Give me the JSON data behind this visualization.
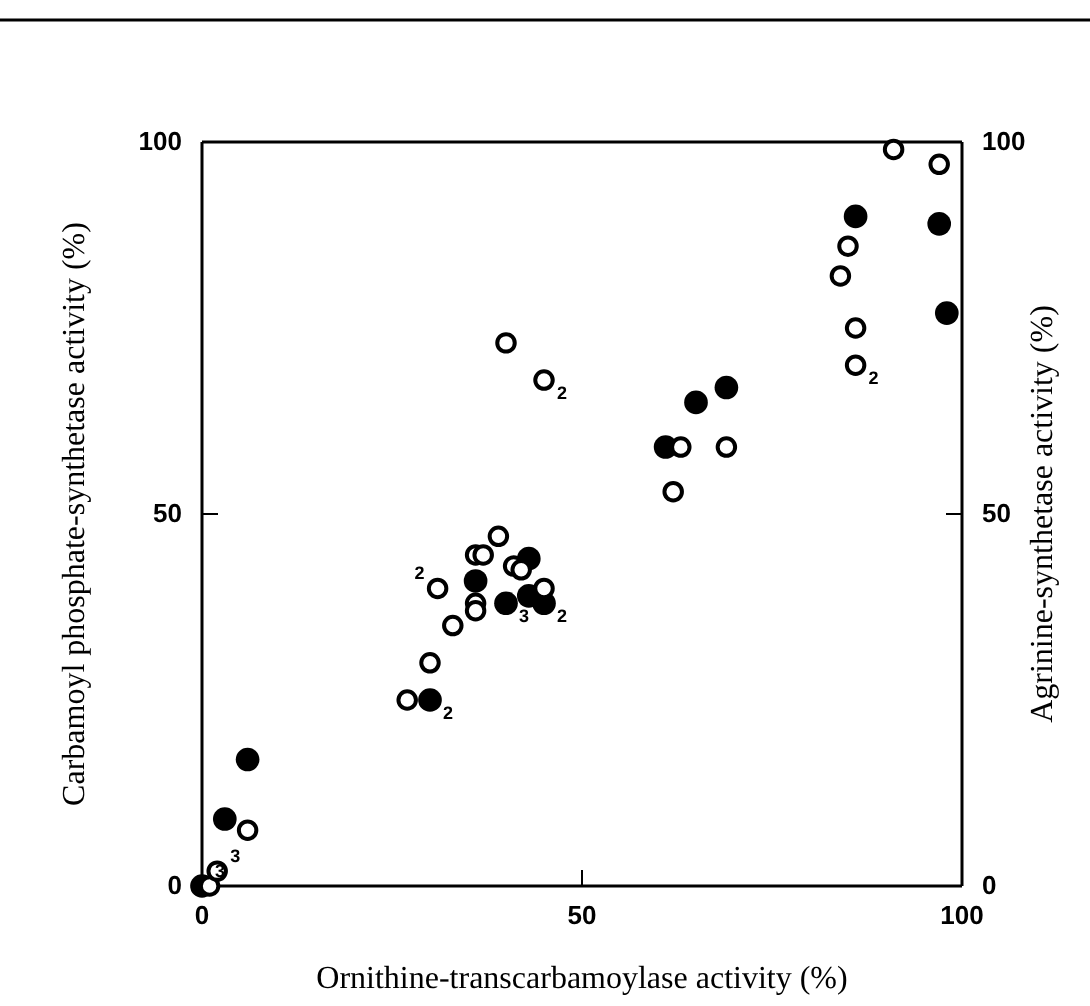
{
  "chart_data": {
    "type": "scatter",
    "xlabel": "Ornithine-transcarbamoylase activity (%)",
    "ylabel": "Carbamoyl phosphate-synthetase activity (%)",
    "y2label": "Agrinine-synthetase activity (%)",
    "xlim": [
      0,
      100
    ],
    "ylim": [
      0,
      100
    ],
    "y2lim": [
      0,
      100
    ],
    "xticks": [
      0,
      50,
      100
    ],
    "yticks": [
      0,
      50,
      100
    ],
    "y2ticks": [
      0,
      50,
      100
    ],
    "marker": "circle",
    "grid": false,
    "series": [
      {
        "color": "#000000",
        "x": [
          0,
          3,
          6,
          30,
          36,
          40,
          43,
          43,
          45,
          61,
          65,
          69,
          86,
          97,
          98
        ],
        "values": [
          0,
          9,
          17,
          25,
          41,
          38,
          44,
          39,
          38,
          59,
          65,
          67,
          90,
          89,
          77
        ]
      },
      {
        "color": "#000000",
        "axis": "y2",
        "x": [
          1,
          2,
          6,
          27,
          30,
          31,
          33,
          36,
          37,
          39,
          36,
          36,
          41,
          42,
          45,
          40,
          45,
          62,
          63,
          69,
          84,
          85,
          86,
          86,
          91,
          97
        ],
        "values": [
          0,
          2,
          7.5,
          25,
          30,
          40,
          35,
          44.5,
          44.5,
          47,
          38,
          37,
          43,
          42.5,
          40,
          73,
          68,
          53,
          59,
          59,
          82,
          86,
          75,
          70,
          99,
          97
        ]
      }
    ],
    "annotations": [
      {
        "text": "2",
        "x": 45,
        "y": 68
      },
      {
        "text": "3",
        "x": 0,
        "y": 0
      },
      {
        "text": "3",
        "x": 2,
        "y": 2
      },
      {
        "text": "2",
        "x": 30,
        "y": 25
      },
      {
        "text": "2",
        "x": 31,
        "y": 40
      },
      {
        "text": "3",
        "x": 40,
        "y": 38
      },
      {
        "text": "2",
        "x": 45,
        "y": 38
      },
      {
        "text": "2",
        "x": 86,
        "y": 70
      }
    ]
  }
}
